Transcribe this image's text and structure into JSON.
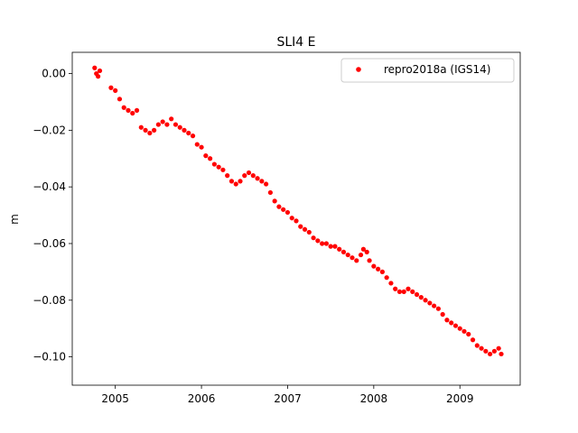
{
  "chart_data": {
    "type": "scatter",
    "title": "SLI4 E",
    "xlabel": "",
    "ylabel": "m",
    "xlim": [
      2004.5,
      2009.7
    ],
    "ylim": [
      -0.11,
      0.0075
    ],
    "xticks": [
      2005,
      2006,
      2007,
      2008,
      2009
    ],
    "xtick_labels": [
      "2005",
      "2006",
      "2007",
      "2008",
      "2009"
    ],
    "yticks": [
      0.0,
      -0.02,
      -0.04,
      -0.06,
      -0.08,
      -0.1
    ],
    "ytick_labels": [
      "0.00",
      "−0.02",
      "−0.04",
      "−0.06",
      "−0.08",
      "−0.10"
    ],
    "grid": false,
    "legend_position": "top-right",
    "series": [
      {
        "name": "repro2018a (IGS14)",
        "color": "#ff0000",
        "marker": "circle",
        "points": [
          [
            2004.76,
            0.002
          ],
          [
            2004.78,
            0.0
          ],
          [
            2004.8,
            -0.001
          ],
          [
            2004.82,
            0.001
          ],
          [
            2004.95,
            -0.005
          ],
          [
            2005.0,
            -0.006
          ],
          [
            2005.05,
            -0.009
          ],
          [
            2005.1,
            -0.012
          ],
          [
            2005.15,
            -0.013
          ],
          [
            2005.2,
            -0.014
          ],
          [
            2005.25,
            -0.013
          ],
          [
            2005.3,
            -0.019
          ],
          [
            2005.35,
            -0.02
          ],
          [
            2005.4,
            -0.021
          ],
          [
            2005.45,
            -0.02
          ],
          [
            2005.5,
            -0.018
          ],
          [
            2005.55,
            -0.017
          ],
          [
            2005.6,
            -0.018
          ],
          [
            2005.65,
            -0.016
          ],
          [
            2005.7,
            -0.018
          ],
          [
            2005.75,
            -0.019
          ],
          [
            2005.8,
            -0.02
          ],
          [
            2005.85,
            -0.021
          ],
          [
            2005.9,
            -0.022
          ],
          [
            2005.95,
            -0.025
          ],
          [
            2006.0,
            -0.026
          ],
          [
            2006.05,
            -0.029
          ],
          [
            2006.1,
            -0.03
          ],
          [
            2006.15,
            -0.032
          ],
          [
            2006.2,
            -0.033
          ],
          [
            2006.25,
            -0.034
          ],
          [
            2006.3,
            -0.036
          ],
          [
            2006.35,
            -0.038
          ],
          [
            2006.4,
            -0.039
          ],
          [
            2006.45,
            -0.038
          ],
          [
            2006.5,
            -0.036
          ],
          [
            2006.55,
            -0.035
          ],
          [
            2006.6,
            -0.036
          ],
          [
            2006.65,
            -0.037
          ],
          [
            2006.7,
            -0.038
          ],
          [
            2006.75,
            -0.039
          ],
          [
            2006.8,
            -0.042
          ],
          [
            2006.85,
            -0.045
          ],
          [
            2006.9,
            -0.047
          ],
          [
            2006.95,
            -0.048
          ],
          [
            2007.0,
            -0.049
          ],
          [
            2007.05,
            -0.051
          ],
          [
            2007.1,
            -0.052
          ],
          [
            2007.15,
            -0.054
          ],
          [
            2007.2,
            -0.055
          ],
          [
            2007.25,
            -0.056
          ],
          [
            2007.3,
            -0.058
          ],
          [
            2007.35,
            -0.059
          ],
          [
            2007.4,
            -0.06
          ],
          [
            2007.45,
            -0.06
          ],
          [
            2007.5,
            -0.061
          ],
          [
            2007.55,
            -0.061
          ],
          [
            2007.6,
            -0.062
          ],
          [
            2007.65,
            -0.063
          ],
          [
            2007.7,
            -0.064
          ],
          [
            2007.75,
            -0.065
          ],
          [
            2007.8,
            -0.066
          ],
          [
            2007.85,
            -0.064
          ],
          [
            2007.88,
            -0.062
          ],
          [
            2007.92,
            -0.063
          ],
          [
            2007.95,
            -0.066
          ],
          [
            2008.0,
            -0.068
          ],
          [
            2008.05,
            -0.069
          ],
          [
            2008.1,
            -0.07
          ],
          [
            2008.15,
            -0.072
          ],
          [
            2008.2,
            -0.074
          ],
          [
            2008.25,
            -0.076
          ],
          [
            2008.3,
            -0.077
          ],
          [
            2008.35,
            -0.077
          ],
          [
            2008.4,
            -0.076
          ],
          [
            2008.45,
            -0.077
          ],
          [
            2008.5,
            -0.078
          ],
          [
            2008.55,
            -0.079
          ],
          [
            2008.6,
            -0.08
          ],
          [
            2008.65,
            -0.081
          ],
          [
            2008.7,
            -0.082
          ],
          [
            2008.75,
            -0.083
          ],
          [
            2008.8,
            -0.085
          ],
          [
            2008.85,
            -0.087
          ],
          [
            2008.9,
            -0.088
          ],
          [
            2008.95,
            -0.089
          ],
          [
            2009.0,
            -0.09
          ],
          [
            2009.05,
            -0.091
          ],
          [
            2009.1,
            -0.092
          ],
          [
            2009.15,
            -0.094
          ],
          [
            2009.2,
            -0.096
          ],
          [
            2009.25,
            -0.097
          ],
          [
            2009.3,
            -0.098
          ],
          [
            2009.35,
            -0.099
          ],
          [
            2009.4,
            -0.098
          ],
          [
            2009.45,
            -0.097
          ],
          [
            2009.48,
            -0.099
          ]
        ]
      }
    ]
  }
}
